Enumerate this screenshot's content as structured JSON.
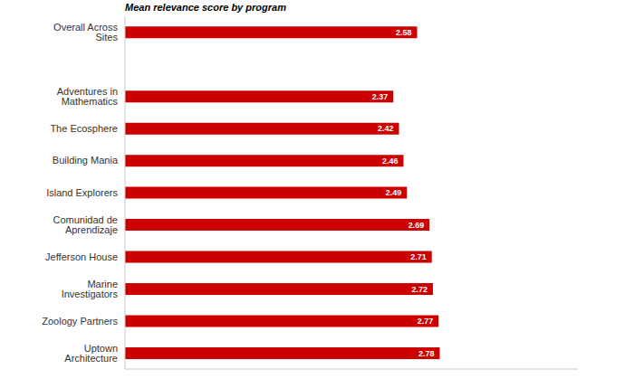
{
  "chart_data": {
    "type": "bar",
    "orientation": "horizontal",
    "title": "Mean relevance score by program",
    "categories": [
      "Overall Across Sites",
      null,
      "Adventures in Mathematics",
      "The Ecosphere",
      "Building Mania",
      "Island Explorers",
      "Comunidad de Aprendizaje",
      "Jefferson House",
      "Marine Investigators",
      "Zoology Partners",
      "Uptown Architecture"
    ],
    "values": [
      2.58,
      null,
      2.37,
      2.42,
      2.46,
      2.49,
      2.69,
      2.71,
      2.72,
      2.77,
      2.78
    ],
    "color": "#cc0000",
    "xlim": [
      0,
      4
    ],
    "grid": false,
    "data_labels": true,
    "tick_labels": "y"
  }
}
